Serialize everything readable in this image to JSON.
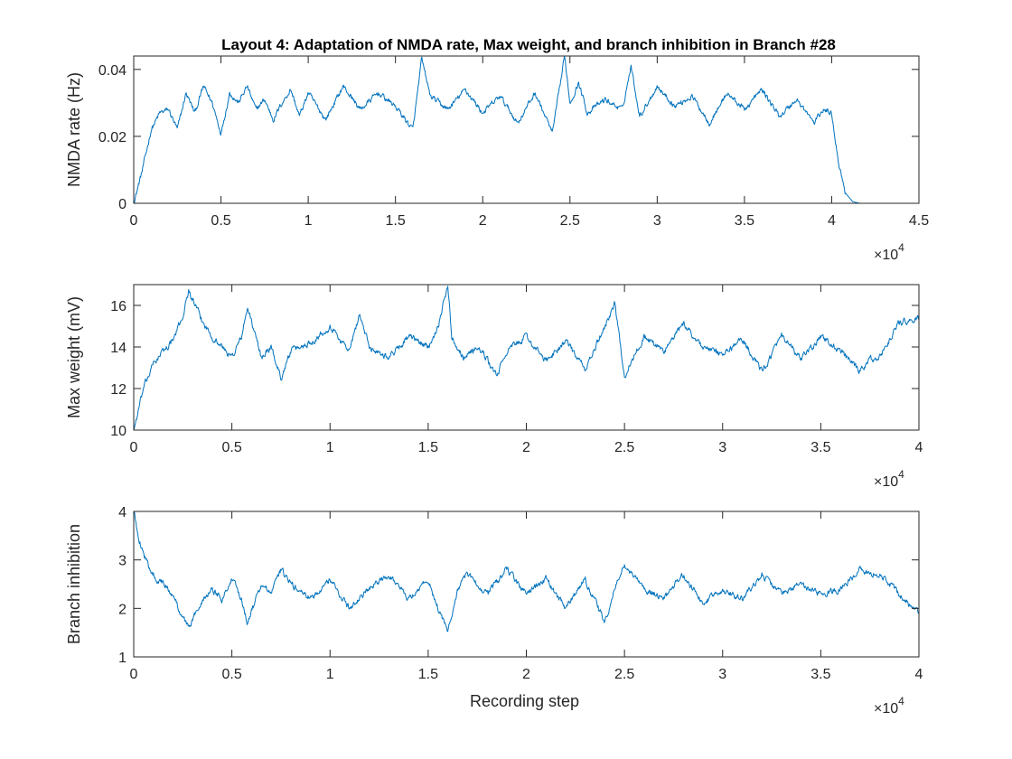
{
  "title": "Layout 4: Adaptation of NMDA rate, Max weight, and branch inhibition in Branch #28",
  "chart_data": [
    {
      "type": "line",
      "ylabel": "NMDA rate (Hz)",
      "xlabel": "",
      "xlim": [
        0,
        45000
      ],
      "ylim": [
        0,
        0.044
      ],
      "x_exponent_label": "×10",
      "x_exponent": "4",
      "xticks": [
        0,
        5000,
        10000,
        15000,
        20000,
        25000,
        30000,
        35000,
        40000,
        45000
      ],
      "xticklabels": [
        "0",
        "0.5",
        "1",
        "1.5",
        "2",
        "2.5",
        "3",
        "3.5",
        "4",
        "4.5"
      ],
      "yticks": [
        0,
        0.02,
        0.04
      ],
      "yticklabels": [
        "0",
        "0.02",
        "0.04"
      ],
      "color": "#0072BD",
      "x": [
        0,
        500,
        1000,
        1500,
        2000,
        2500,
        3000,
        3500,
        4000,
        4500,
        5000,
        5500,
        6000,
        6500,
        7000,
        7500,
        8000,
        8500,
        9000,
        9500,
        10000,
        11000,
        12000,
        13000,
        14000,
        15000,
        16000,
        16500,
        17000,
        18000,
        19000,
        20000,
        21000,
        22000,
        23000,
        24000,
        24700,
        25000,
        25500,
        26000,
        27000,
        28000,
        28500,
        29000,
        30000,
        31000,
        32000,
        33000,
        34000,
        35000,
        36000,
        37000,
        38000,
        39000,
        39500,
        40000,
        40400,
        40800,
        41200,
        41600,
        42000,
        42500
      ],
      "values": [
        0,
        0.01,
        0.022,
        0.027,
        0.028,
        0.022,
        0.033,
        0.027,
        0.035,
        0.03,
        0.021,
        0.033,
        0.03,
        0.035,
        0.028,
        0.031,
        0.025,
        0.03,
        0.034,
        0.026,
        0.033,
        0.025,
        0.035,
        0.028,
        0.033,
        0.029,
        0.022,
        0.043,
        0.032,
        0.028,
        0.034,
        0.027,
        0.032,
        0.024,
        0.033,
        0.021,
        0.044,
        0.03,
        0.036,
        0.027,
        0.031,
        0.028,
        0.041,
        0.026,
        0.035,
        0.029,
        0.032,
        0.024,
        0.033,
        0.028,
        0.034,
        0.026,
        0.031,
        0.024,
        0.028,
        0.027,
        0.012,
        0.003,
        0.0005,
        0,
        0,
        0
      ]
    },
    {
      "type": "line",
      "ylabel": "Max weight (mV)",
      "xlabel": "",
      "xlim": [
        0,
        40000
      ],
      "ylim": [
        10,
        17
      ],
      "x_exponent_label": "×10",
      "x_exponent": "4",
      "xticks": [
        0,
        5000,
        10000,
        15000,
        20000,
        25000,
        30000,
        35000,
        40000
      ],
      "xticklabels": [
        "0",
        "0.5",
        "1",
        "1.5",
        "2",
        "2.5",
        "3",
        "3.5",
        "4"
      ],
      "yticks": [
        10,
        12,
        14,
        16
      ],
      "yticklabels": [
        "10",
        "12",
        "14",
        "16"
      ],
      "color": "#0072BD",
      "x": [
        0,
        500,
        1000,
        1500,
        2000,
        2500,
        2800,
        3500,
        4000,
        4500,
        5000,
        5500,
        5800,
        6500,
        7000,
        7500,
        8000,
        9000,
        10000,
        11000,
        11500,
        12000,
        13000,
        14000,
        15000,
        15500,
        16000,
        16200,
        16800,
        17500,
        18000,
        18500,
        19000,
        20000,
        21000,
        22000,
        23000,
        24000,
        24500,
        25000,
        26000,
        27000,
        28000,
        29000,
        30000,
        31000,
        32000,
        33000,
        34000,
        35000,
        36000,
        37000,
        37500,
        38000,
        39000,
        40000
      ],
      "values": [
        10,
        12,
        13.2,
        13.8,
        14.3,
        15.5,
        16.7,
        15.2,
        14.5,
        14.0,
        13.5,
        14.5,
        15.9,
        13.5,
        14.0,
        12.5,
        13.8,
        14.2,
        15,
        13.8,
        15.6,
        14.0,
        13.5,
        14.5,
        14,
        15,
        17,
        14.5,
        13.5,
        14,
        13.4,
        12.6,
        13.8,
        14.5,
        13.3,
        14.3,
        12.9,
        15,
        16.1,
        12.6,
        14.5,
        13.8,
        15.1,
        14,
        13.6,
        14.4,
        12.8,
        14.5,
        13.4,
        14.5,
        13.8,
        12.8,
        13.4,
        13.5,
        15.2,
        15.3
      ]
    },
    {
      "type": "line",
      "ylabel": "Branch inhibition",
      "xlabel": "Recording step",
      "xlim": [
        0,
        40000
      ],
      "ylim": [
        1,
        4
      ],
      "x_exponent_label": "×10",
      "x_exponent": "4",
      "xticks": [
        0,
        5000,
        10000,
        15000,
        20000,
        25000,
        30000,
        35000,
        40000
      ],
      "xticklabels": [
        "0",
        "0.5",
        "1",
        "1.5",
        "2",
        "2.5",
        "3",
        "3.5",
        "4"
      ],
      "yticks": [
        1,
        2,
        3,
        4
      ],
      "yticklabels": [
        "1",
        "2",
        "3",
        "4"
      ],
      "color": "#0072BD",
      "x": [
        0,
        300,
        700,
        1200,
        1800,
        2300,
        2800,
        3500,
        4000,
        4500,
        5000,
        5500,
        5800,
        6500,
        7000,
        7500,
        8000,
        9000,
        10000,
        11000,
        12000,
        13000,
        14000,
        15000,
        15500,
        16000,
        16500,
        17000,
        18000,
        19000,
        20000,
        21000,
        22000,
        23000,
        24000,
        24500,
        25000,
        26000,
        27000,
        28000,
        29000,
        30000,
        31000,
        32000,
        33000,
        34000,
        35000,
        36000,
        37000,
        38000,
        39000,
        40000
      ],
      "values": [
        4,
        3.4,
        2.9,
        2.6,
        2.4,
        2.0,
        1.6,
        2.2,
        2.4,
        2.2,
        2.6,
        2.2,
        1.7,
        2.5,
        2.3,
        2.8,
        2.5,
        2.2,
        2.6,
        2.0,
        2.4,
        2.7,
        2.2,
        2.6,
        2.0,
        1.5,
        2.4,
        2.7,
        2.3,
        2.8,
        2.3,
        2.6,
        2.0,
        2.6,
        1.7,
        2.4,
        2.9,
        2.4,
        2.2,
        2.7,
        2.1,
        2.4,
        2.2,
        2.7,
        2.3,
        2.5,
        2.3,
        2.4,
        2.8,
        2.7,
        2.3,
        1.9
      ]
    }
  ]
}
